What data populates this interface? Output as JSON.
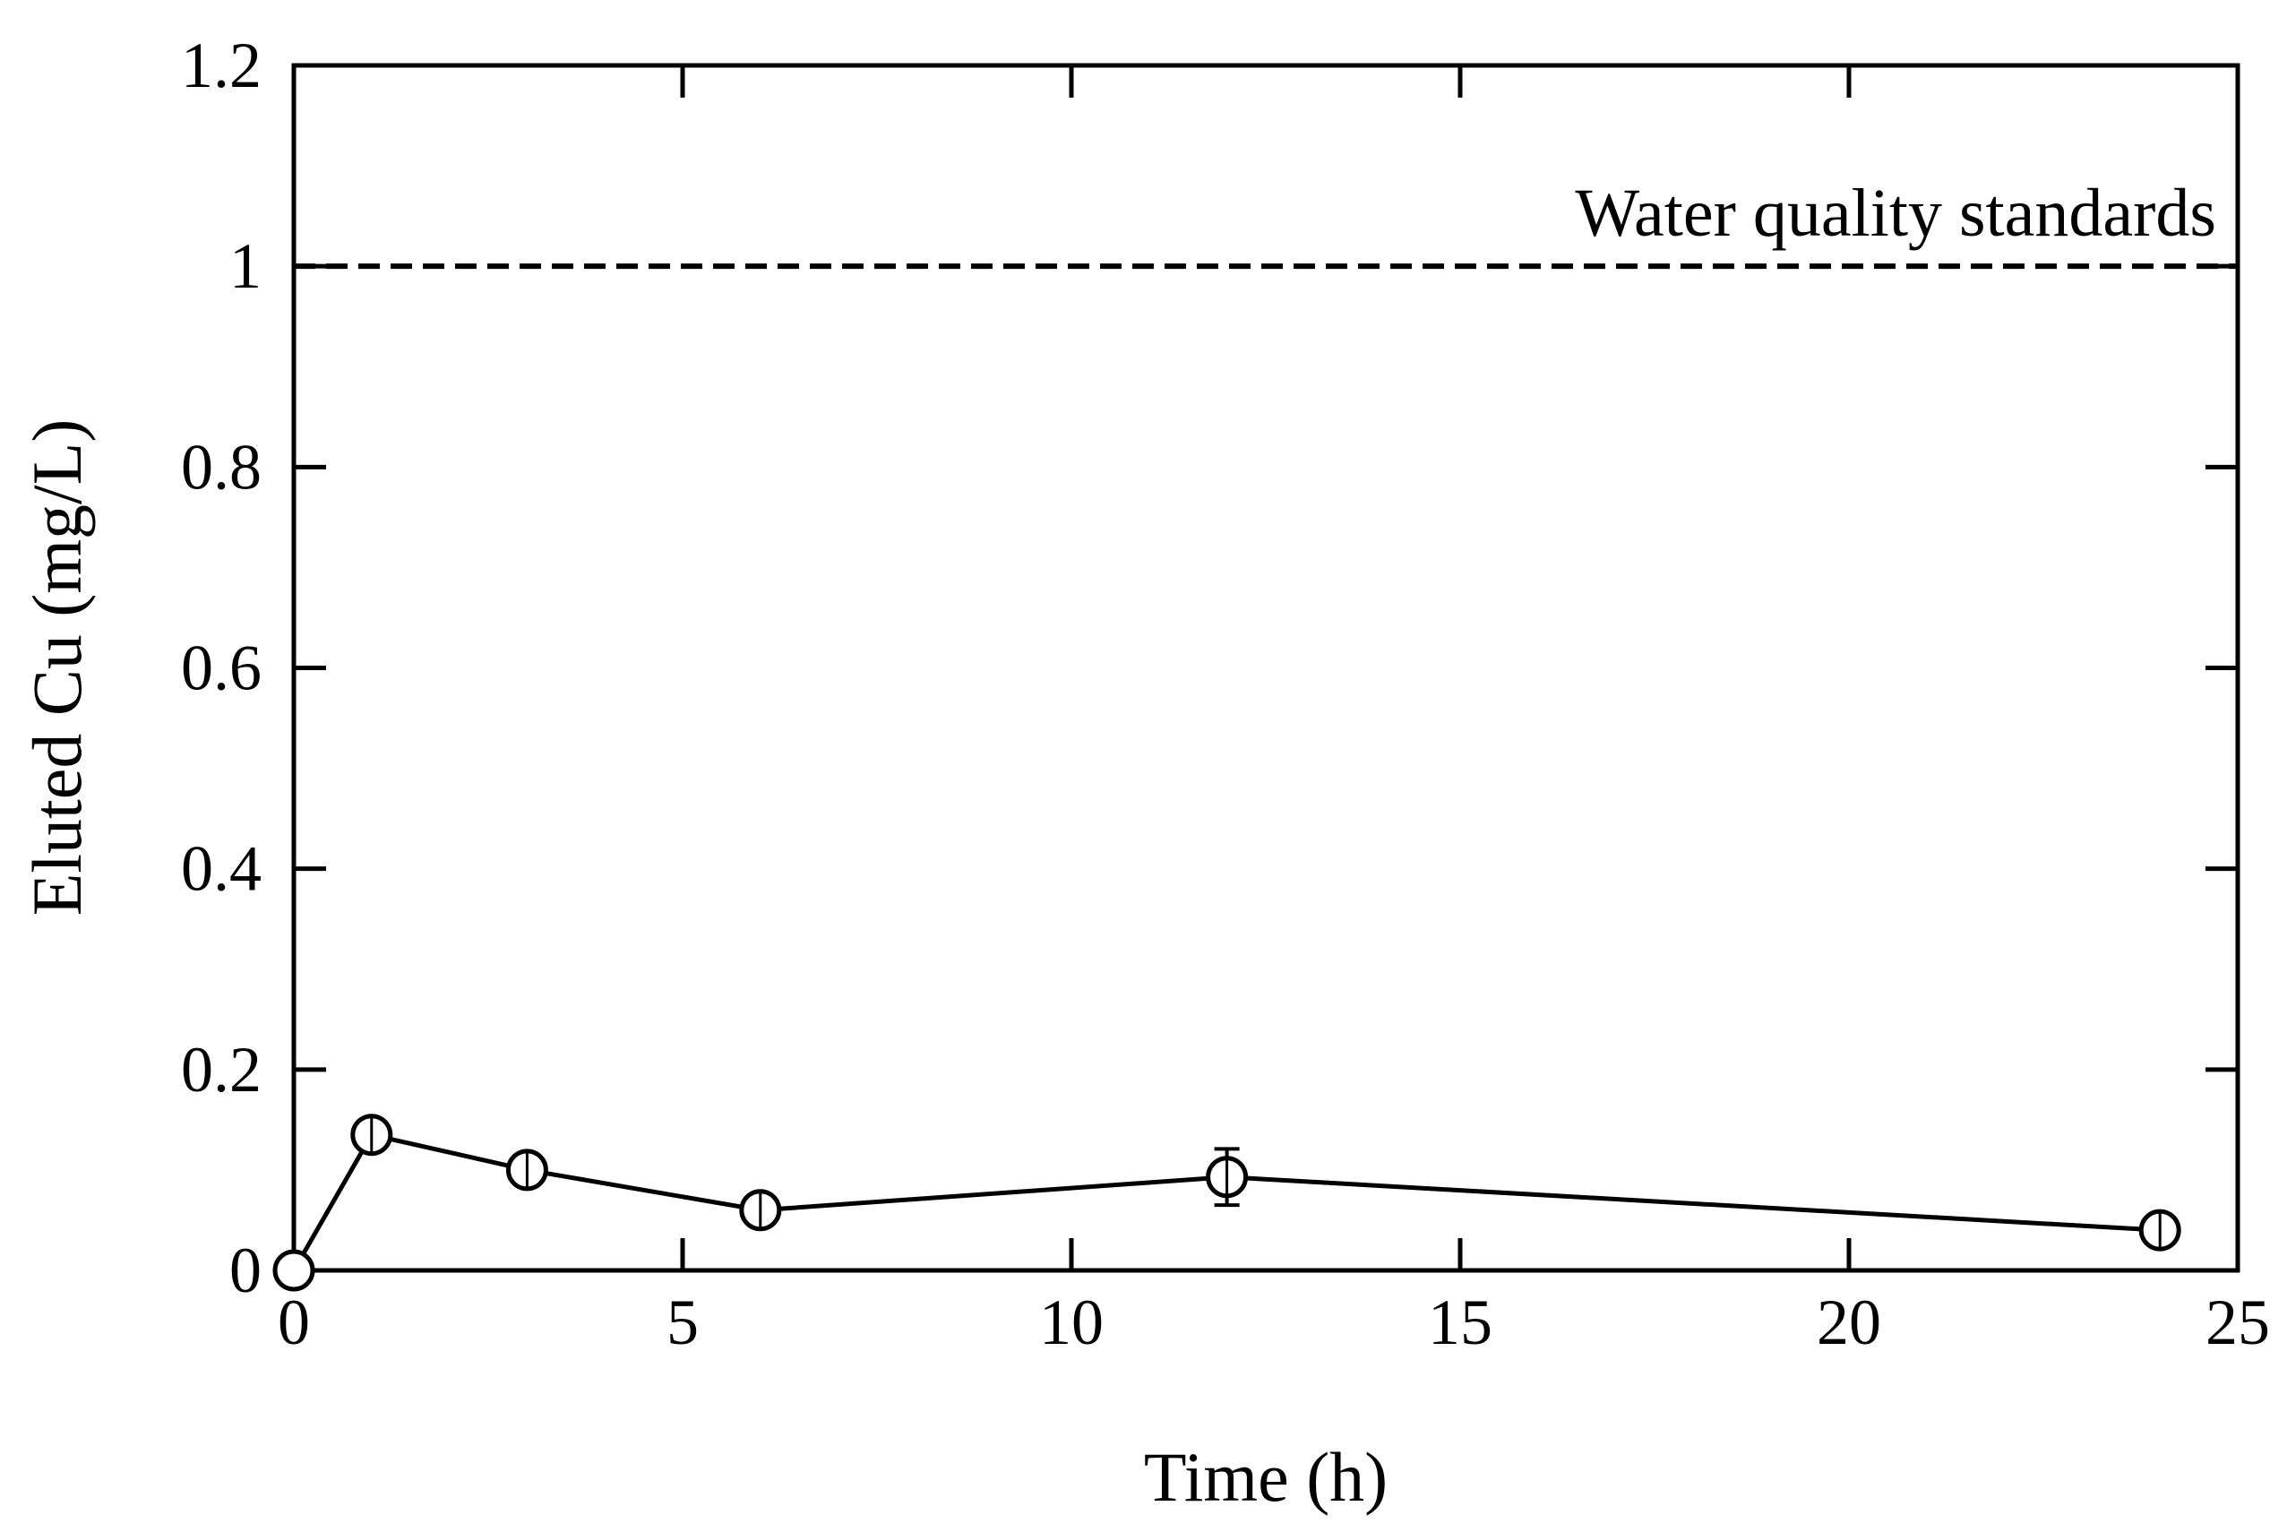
{
  "chart_data": {
    "type": "line",
    "title": "",
    "xlabel": "Time (h)",
    "ylabel": "Eluted Cu (mg/L)",
    "xlim": [
      0,
      25
    ],
    "ylim": [
      0,
      1.2
    ],
    "xticks": [
      0,
      5,
      10,
      15,
      20,
      25
    ],
    "xtick_labels": [
      "0",
      "5",
      "10",
      "15",
      "20",
      "25"
    ],
    "yticks": [
      0,
      0.2,
      0.4,
      0.6,
      0.8,
      1,
      1.2
    ],
    "ytick_labels": [
      "0",
      "0.2",
      "0.4",
      "0.6",
      "0.8",
      "1",
      "1.2"
    ],
    "grid": false,
    "series": [
      {
        "name": "Eluted Cu",
        "marker": "open-circle",
        "x": [
          0,
          1,
          3,
          6,
          12,
          24
        ],
        "y": [
          0.0,
          0.135,
          0.1,
          0.06,
          0.093,
          0.04
        ],
        "error": [
          0.0,
          0.01,
          0.015,
          0.012,
          0.028,
          0.012
        ]
      }
    ],
    "reference_lines": [
      {
        "label": "Water quality standards",
        "y": 1.0,
        "style": "dashed"
      }
    ]
  }
}
